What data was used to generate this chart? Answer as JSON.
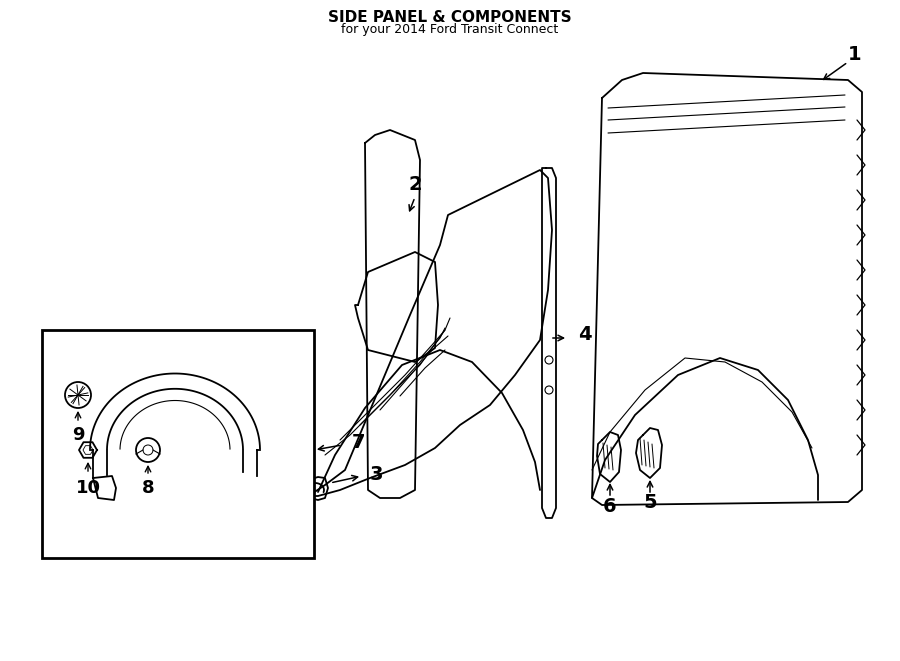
{
  "title": "SIDE PANEL & COMPONENTS",
  "subtitle": "for your 2014 Ford Transit Connect",
  "bg_color": "#ffffff",
  "line_color": "#000000"
}
